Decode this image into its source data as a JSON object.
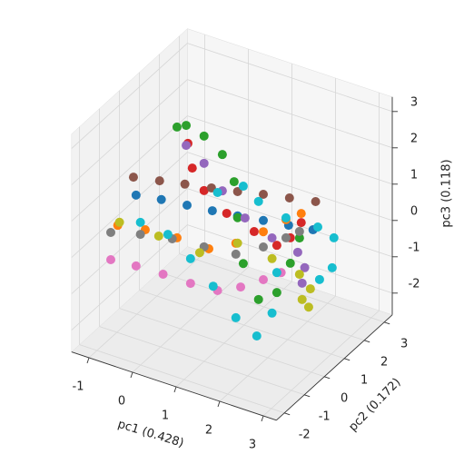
{
  "chart_data": {
    "type": "scatter3d",
    "xlabel": "pc1 (0.428)",
    "ylabel": "pc2 (0.172)",
    "zlabel": "pc3 (0.118)",
    "xlim": [
      -1.4,
      3.3
    ],
    "ylim": [
      -2.4,
      3.4
    ],
    "zlim": [
      -2.6,
      3.4
    ],
    "xticks": [
      -1,
      0,
      1,
      2,
      3
    ],
    "yticks": [
      -2,
      -1,
      0,
      1,
      2,
      3
    ],
    "zticks": [
      -2,
      -1,
      0,
      1,
      2,
      3
    ],
    "grid": true,
    "series": [
      {
        "color": "#1f77b4",
        "x": [
          -1.02,
          -0.44,
          0.15,
          0.73,
          1.31,
          1.9,
          2.48,
          3.04
        ],
        "y": [
          0,
          0,
          0,
          0,
          0,
          0,
          0,
          0
        ],
        "z": [
          0.67,
          0.78,
          0.86,
          0.94,
          1.03,
          1.14,
          1.24,
          1.34
        ]
      },
      {
        "color": "#ff7f0e",
        "x": [
          -1.44,
          -0.81,
          -0.08,
          0.65,
          1.27,
          1.9,
          2.42,
          2.77
        ],
        "y": [
          0,
          0,
          0,
          0,
          0,
          0,
          0,
          0
        ],
        "z": [
          -0.33,
          -0.2,
          -0.13,
          -0.14,
          0.26,
          0.83,
          1.37,
          1.68
        ]
      },
      {
        "color": "#2ca02c",
        "x": [
          -0.08,
          0.13,
          0.54,
          0.96,
          1.23,
          1.31,
          1.44,
          1.79,
          2.21,
          2.52,
          2.73
        ],
        "y": [
          0,
          0,
          0,
          0,
          0,
          0,
          0,
          0,
          0,
          0,
          0
        ],
        "z": [
          2.92,
          3.05,
          2.92,
          2.58,
          1.94,
          0.98,
          -0.23,
          -1.08,
          -0.72,
          0.21,
          0.99
        ]
      },
      {
        "color": "#d62728",
        "x": [
          0.17,
          0.27,
          0.54,
          1.06,
          1.69,
          2.21,
          2.52,
          2.77
        ],
        "y": [
          0,
          0,
          0,
          0,
          0,
          0,
          0,
          0
        ],
        "z": [
          2.57,
          1.93,
          1.42,
          1.0,
          0.75,
          0.58,
          0.91,
          1.43
        ]
      },
      {
        "color": "#9467bd",
        "x": [
          0.13,
          0.54,
          0.96,
          1.48,
          2.1,
          2.69,
          2.85,
          2.79
        ],
        "y": [
          0,
          0,
          0,
          0,
          0,
          0,
          0,
          0
        ],
        "z": [
          2.5,
          2.17,
          1.58,
          1.04,
          0.74,
          0.58,
          0.22,
          -0.23
        ]
      },
      {
        "color": "#8c564b",
        "x": [
          -1.08,
          -0.48,
          0.1,
          0.71,
          1.31,
          1.9,
          2.5,
          3.1
        ],
        "y": [
          0,
          0,
          0,
          0,
          0,
          0,
          0,
          0
        ],
        "z": [
          1.14,
          1.28,
          1.42,
          1.56,
          1.7,
          1.86,
          2.0,
          2.14
        ]
      },
      {
        "color": "#e377c2",
        "x": [
          -1.6,
          -1.02,
          -0.4,
          0.23,
          0.85,
          1.38,
          1.9,
          2.31
        ],
        "y": [
          0,
          0,
          0,
          0,
          0,
          0,
          0,
          0
        ],
        "z": [
          -1.34,
          -1.28,
          -1.26,
          -1.26,
          -1.21,
          -0.9,
          -0.49,
          -0.13
        ]
      },
      {
        "color": "#7f7f7f",
        "x": [
          -1.6,
          -0.92,
          -0.19,
          0.54,
          1.27,
          1.9,
          2.42,
          2.73
        ],
        "y": [
          0,
          0,
          0,
          0,
          0,
          0,
          0,
          0
        ],
        "z": [
          -0.59,
          -0.37,
          -0.2,
          -0.13,
          -0.04,
          0.41,
          0.87,
          1.17
        ]
      },
      {
        "color": "#bcbd22",
        "x": [
          -1.4,
          -0.5,
          0.44,
          1.31,
          2.1,
          2.73,
          2.98,
          2.94,
          2.79
        ],
        "y": [
          0,
          0,
          0,
          0,
          0,
          0,
          0,
          0,
          0
        ],
        "z": [
          -0.23,
          -0.25,
          -0.33,
          0.28,
          0.17,
          -0.01,
          -0.31,
          -0.83,
          -0.68
        ]
      },
      {
        "color": "#17becf",
        "x": [
          -0.92,
          -0.29,
          0.23,
          0.75,
          1.27,
          1.75,
          2.1,
          2.21,
          0.85,
          1.44,
          1.79,
          2.42,
          3.15,
          3.52,
          3.48,
          3.19
        ],
        "y": [
          0,
          0,
          0,
          0,
          0,
          0,
          0,
          0,
          0,
          0,
          0,
          0,
          0,
          0,
          0,
          0
        ],
        "z": [
          -0.04,
          -0.12,
          -0.58,
          -1.13,
          -1.79,
          -2.1,
          -1.33,
          -0.17,
          1.49,
          1.9,
          1.62,
          1.42,
          1.46,
          1.31,
          0.47,
          0.03
        ]
      }
    ]
  }
}
